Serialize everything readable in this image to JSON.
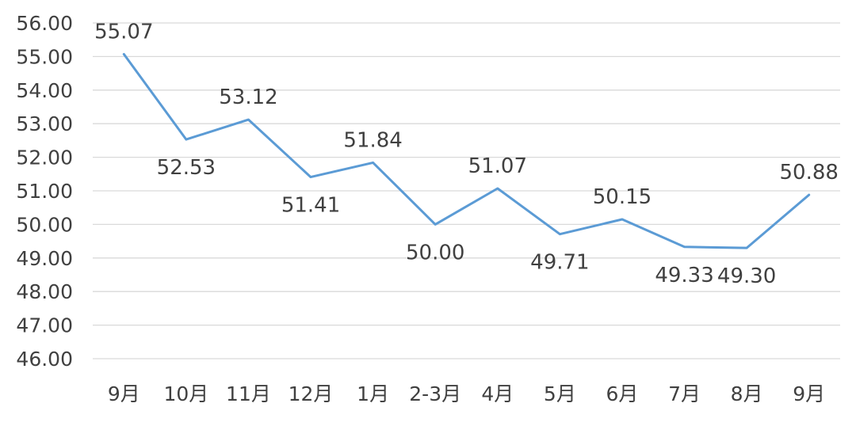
{
  "chart_data": {
    "type": "line",
    "title": "",
    "xlabel": "",
    "ylabel": "",
    "categories": [
      "9月",
      "10月",
      "11月",
      "12月",
      "1月",
      "2-3月",
      "4月",
      "5月",
      "6月",
      "7月",
      "8月",
      "9月"
    ],
    "series": [
      {
        "values": [
          55.07,
          52.53,
          53.12,
          51.41,
          51.84,
          50.0,
          51.07,
          49.71,
          50.15,
          49.33,
          49.3,
          50.88
        ],
        "labels": [
          "55.07",
          "52.53",
          "53.12",
          "51.41",
          "51.84",
          "50.00",
          "51.07",
          "49.71",
          "50.15",
          "49.33",
          "49.30",
          "50.88"
        ],
        "label_positions": [
          "above",
          "below",
          "above",
          "below",
          "above",
          "below",
          "above",
          "below",
          "above",
          "below",
          "below",
          "above"
        ],
        "color": "#5B9BD5"
      }
    ],
    "ylim": [
      46,
      56
    ],
    "y_ticks": [
      "46.00",
      "47.00",
      "48.00",
      "49.00",
      "50.00",
      "51.00",
      "52.00",
      "53.00",
      "54.00",
      "55.00",
      "56.00"
    ],
    "grid": true,
    "legend": "none"
  }
}
